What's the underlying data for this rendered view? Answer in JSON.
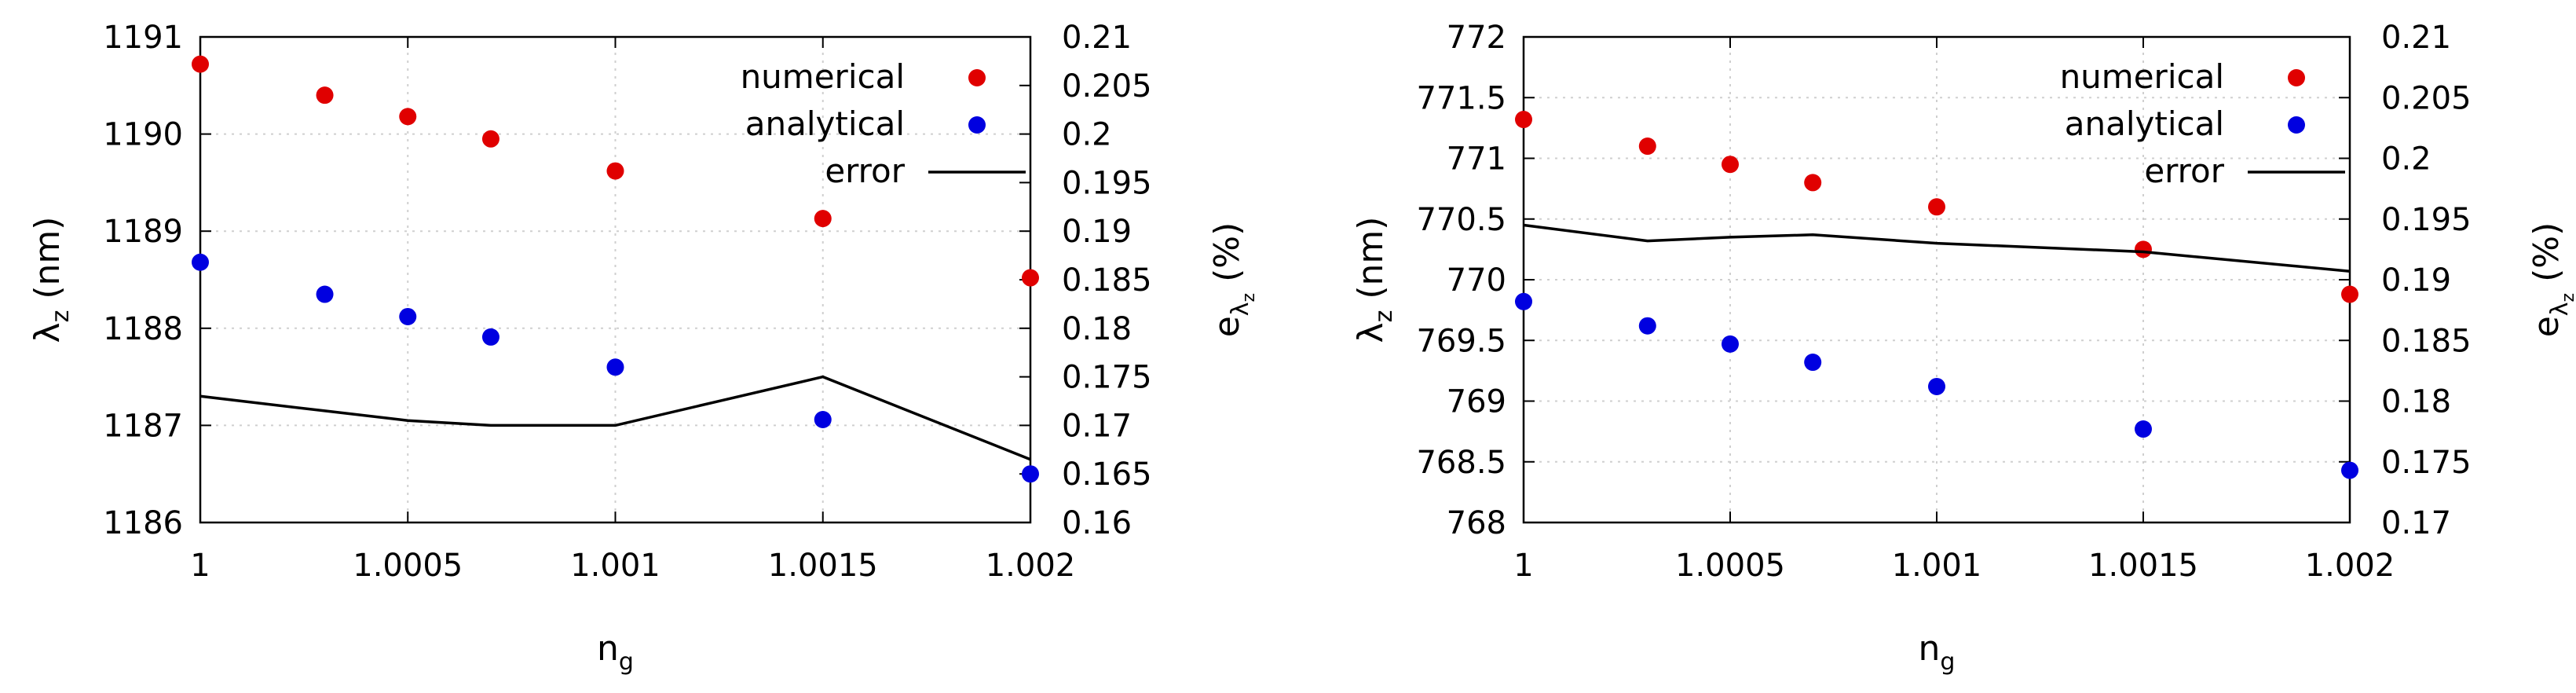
{
  "chart_data": [
    {
      "type": "scatter",
      "x": [
        1,
        1.0003,
        1.0005,
        1.0007,
        1.001,
        1.0015,
        1.002
      ],
      "series": [
        {
          "name": "numerical",
          "axis": "y",
          "marker": "point",
          "color": "#e00000",
          "values": [
            1190.72,
            1190.4,
            1190.18,
            1189.95,
            1189.62,
            1189.13,
            1188.52
          ]
        },
        {
          "name": "analytical",
          "axis": "y",
          "marker": "point",
          "color": "#0000e0",
          "values": [
            1188.68,
            1188.35,
            1188.12,
            1187.91,
            1187.6,
            1187.06,
            1186.5
          ]
        },
        {
          "name": "error",
          "axis": "y2",
          "marker": "line",
          "color": "#000000",
          "values": [
            0.173,
            0.1715,
            0.1705,
            0.17,
            0.17,
            0.175,
            0.1665
          ]
        }
      ],
      "xlim": [
        1,
        1.002
      ],
      "ylim": [
        1186,
        1191
      ],
      "y2lim": [
        0.16,
        0.21
      ],
      "xticks": [
        "1",
        "1.0005",
        "1.001",
        "1.0015",
        "1.002"
      ],
      "yticks": [
        "1186",
        "1187",
        "1188",
        "1189",
        "1190",
        "1191"
      ],
      "y2ticks": [
        "0.16",
        "0.165",
        "0.17",
        "0.175",
        "0.18",
        "0.185",
        "0.19",
        "0.195",
        "0.2",
        "0.205",
        "0.21"
      ],
      "xlabel": {
        "main": "n",
        "sub": "g"
      },
      "ylabel": {
        "main": "λ",
        "sub": "z",
        "rest": " (nm)"
      },
      "y2label": {
        "main": "e",
        "sub": "λ",
        "subsub": "z",
        "rest": " (%)"
      },
      "grid": true,
      "legend": "top-right"
    },
    {
      "type": "scatter",
      "x": [
        1,
        1.0003,
        1.0005,
        1.0007,
        1.001,
        1.0015,
        1.002
      ],
      "series": [
        {
          "name": "numerical",
          "axis": "y",
          "marker": "point",
          "color": "#e00000",
          "values": [
            771.32,
            771.1,
            770.95,
            770.8,
            770.6,
            770.25,
            769.88
          ]
        },
        {
          "name": "analytical",
          "axis": "y",
          "marker": "point",
          "color": "#0000e0",
          "values": [
            769.82,
            769.62,
            769.47,
            769.32,
            769.12,
            768.77,
            768.43
          ]
        },
        {
          "name": "error",
          "axis": "y2",
          "marker": "line",
          "color": "#000000",
          "values": [
            0.1945,
            0.1932,
            0.1935,
            0.1937,
            0.193,
            0.1923,
            0.1907
          ]
        }
      ],
      "xlim": [
        1,
        1.002
      ],
      "ylim": [
        768,
        772
      ],
      "y2lim": [
        0.17,
        0.21
      ],
      "xticks": [
        "1",
        "1.0005",
        "1.001",
        "1.0015",
        "1.002"
      ],
      "yticks": [
        "768",
        "768.5",
        "769",
        "769.5",
        "770",
        "770.5",
        "771",
        "771.5",
        "772"
      ],
      "y2ticks": [
        "0.17",
        "0.175",
        "0.18",
        "0.185",
        "0.19",
        "0.195",
        "0.2",
        "0.205",
        "0.21"
      ],
      "xlabel": {
        "main": "n",
        "sub": "g"
      },
      "ylabel": {
        "main": "λ",
        "sub": "z",
        "rest": " (nm)"
      },
      "y2label": {
        "main": "e",
        "sub": "λ",
        "subsub": "z",
        "rest": " (%)"
      },
      "grid": true,
      "legend": "top-right"
    }
  ]
}
